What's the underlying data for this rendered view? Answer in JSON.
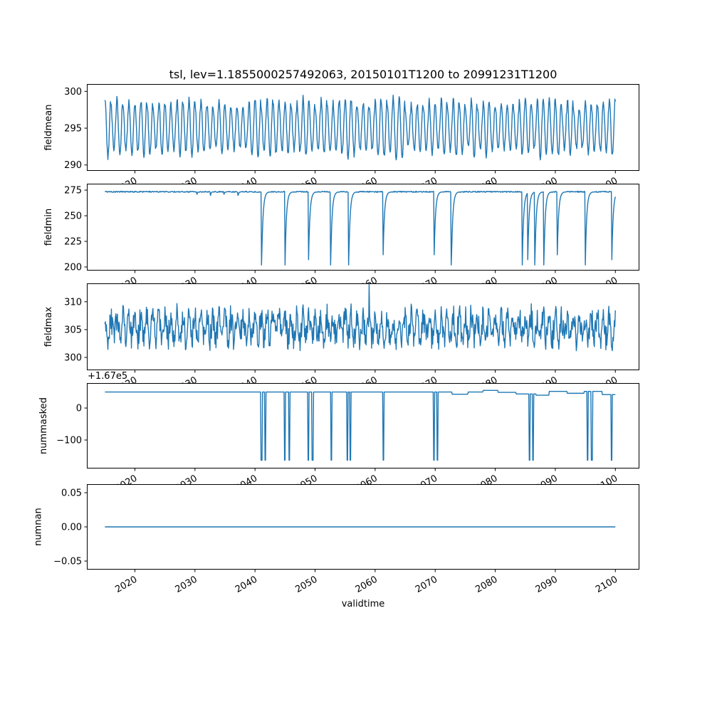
{
  "figure": {
    "title": "tsl, lev=1.1855000257492063, 20150101T1200 to 20991231T1200",
    "xlabel": "validtime",
    "background_color": "#ffffff",
    "line_color": "#1f77b4",
    "frame_color": "#000000"
  },
  "x_axis": {
    "range": [
      2012,
      2104
    ],
    "data_start": 2015.0,
    "data_end": 2100.0,
    "ticks": [
      2020,
      2030,
      2040,
      2050,
      2060,
      2070,
      2080,
      2090,
      2100
    ],
    "tick_rotation_deg": 30
  },
  "chart_data": [
    {
      "type": "line",
      "name": "fieldmean",
      "ylabel": "fieldmean",
      "ylim": [
        289.2,
        301.0
      ],
      "ytick_values": [
        290,
        295,
        300
      ],
      "ytick_labels": [
        "290",
        "295",
        "300"
      ],
      "grid": false,
      "series": {
        "kind": "seasonal",
        "mean": 295.1,
        "amp_min": 2.7,
        "amp_max": 4.1,
        "noise": 0.45,
        "points_per_year": 12,
        "seed": 11
      }
    },
    {
      "type": "line",
      "name": "fieldmin",
      "ylabel": "fieldmin",
      "ylim": [
        196.5,
        281.3
      ],
      "ytick_values": [
        200,
        225,
        250,
        275
      ],
      "ytick_labels": [
        "200",
        "225",
        "250",
        "275"
      ],
      "grid": false,
      "series": {
        "kind": "flat_with_dips",
        "base": 273.4,
        "noise": 0.55,
        "dip_depth": 71.5,
        "recovery_rate": 4.5,
        "points_per_year": 12,
        "seed": 22,
        "dip_years": [
          2041.1,
          2045.0,
          2048.9,
          2052.6,
          2055.6,
          2061.3,
          2069.8,
          2072.7,
          2084.5,
          2085.4,
          2086.6,
          2088.1,
          2090.3,
          2095.0,
          2099.4
        ],
        "minor_dip_years": [
          2030.3,
          2032.6,
          2034.8,
          2037.2
        ],
        "minor_dip_depth": 3.5
      }
    },
    {
      "type": "line",
      "name": "fieldmax",
      "ylabel": "fieldmax",
      "ylim": [
        297.7,
        313.3
      ],
      "ytick_values": [
        300,
        305,
        310
      ],
      "ytick_labels": [
        "300",
        "305",
        "310"
      ],
      "grid": false,
      "series": {
        "kind": "noisy_seasonal",
        "mean": 305.4,
        "amp": 2.0,
        "noise": 2.3,
        "clip": [
          300.4,
          312.6
        ],
        "points_per_year": 12,
        "seed": 33,
        "peaks": [
          {
            "t": 2059.0,
            "v": 313.1
          }
        ]
      }
    },
    {
      "type": "line",
      "name": "nummasked",
      "ylabel": "nummasked",
      "offset_text": "+1.67e5",
      "ylim": [
        -189,
        78
      ],
      "ytick_values": [
        -100,
        0
      ],
      "ytick_labels": [
        "−100",
        "0"
      ],
      "grid": false,
      "series": {
        "kind": "steps_with_spikes",
        "points_per_year": 12,
        "seed": 44,
        "spike_level": -163,
        "spike_width": 0.18,
        "steps": [
          {
            "t": 2015.0,
            "v": 50
          },
          {
            "t": 2072.8,
            "v": 43
          },
          {
            "t": 2075.5,
            "v": 50
          },
          {
            "t": 2078.0,
            "v": 55
          },
          {
            "t": 2080.5,
            "v": 49
          },
          {
            "t": 2083.5,
            "v": 44
          },
          {
            "t": 2086.8,
            "v": 40
          },
          {
            "t": 2089.0,
            "v": 52
          },
          {
            "t": 2092.0,
            "v": 46
          },
          {
            "t": 2094.8,
            "v": 52
          },
          {
            "t": 2097.8,
            "v": 42
          }
        ],
        "spike_years": [
          2041.0,
          2041.6,
          2044.9,
          2045.6,
          2048.8,
          2049.5,
          2052.6,
          2055.3,
          2055.8,
          2061.3,
          2069.7,
          2070.3,
          2085.6,
          2086.2,
          2095.3,
          2096.0,
          2099.3
        ]
      }
    },
    {
      "type": "line",
      "name": "numnan",
      "ylabel": "numnan",
      "ylim": [
        -0.0625,
        0.0625
      ],
      "ytick_values": [
        -0.05,
        0.0,
        0.05
      ],
      "ytick_labels": [
        "−0.05",
        "0.00",
        "0.05"
      ],
      "grid": false,
      "series": {
        "kind": "constant",
        "value": 0.0
      }
    }
  ]
}
